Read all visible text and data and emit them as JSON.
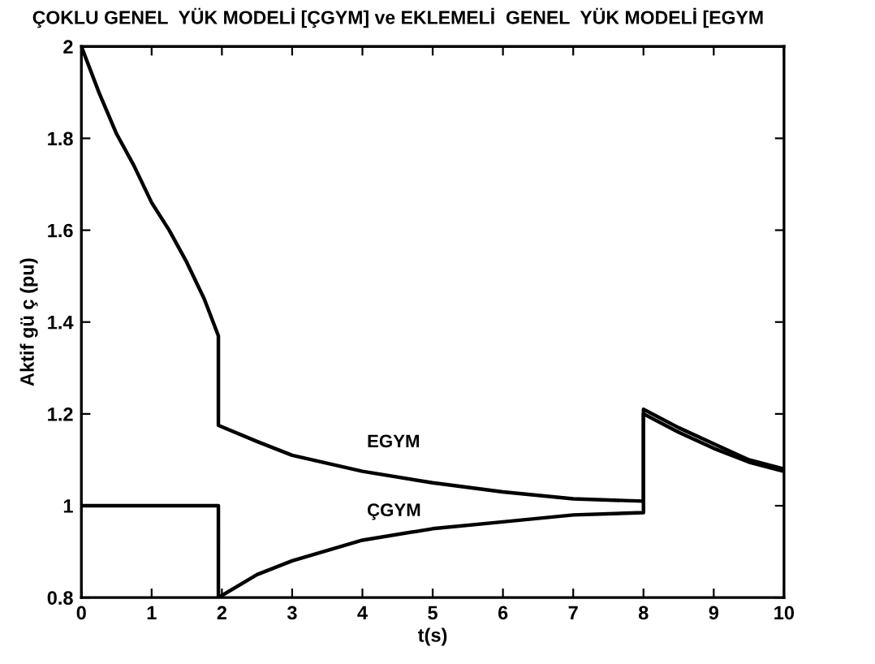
{
  "chart_data": {
    "type": "line",
    "title": "ÇOKLU GENEL  YÜK MODELİ [ÇGYM] ve EKLEMELİ  GENEL  YÜK MODELİ [EGYM",
    "xlabel": "t(s)",
    "ylabel": "Aktif gü ç (pu)",
    "xlim": [
      0,
      10
    ],
    "ylim": [
      0.8,
      2
    ],
    "xticks": [
      0,
      1,
      2,
      3,
      4,
      5,
      6,
      7,
      8,
      9,
      10
    ],
    "yticks": [
      0.8,
      1,
      1.2,
      1.4,
      1.6,
      1.8,
      2
    ],
    "grid": false,
    "legend": false,
    "marker": "none",
    "line_style": "solid",
    "series": [
      {
        "name": "EGYM",
        "color": "#000000",
        "x": [
          0,
          0.25,
          0.5,
          0.75,
          1,
          1.25,
          1.5,
          1.75,
          1.95,
          1.95,
          2.5,
          3,
          4,
          5,
          6,
          7,
          8,
          8,
          8.5,
          9,
          9.5,
          10
        ],
        "values": [
          2,
          1.9,
          1.81,
          1.74,
          1.66,
          1.6,
          1.53,
          1.45,
          1.37,
          1.175,
          1.14,
          1.11,
          1.075,
          1.05,
          1.03,
          1.015,
          1.01,
          1.21,
          1.17,
          1.135,
          1.1,
          1.08
        ]
      },
      {
        "name": "ÇGYM",
        "color": "#000000",
        "x": [
          0,
          1.95,
          1.95,
          2.5,
          3,
          4,
          5,
          6,
          7,
          8,
          8,
          8.5,
          9,
          9.5,
          10
        ],
        "values": [
          1,
          1,
          0.8,
          0.85,
          0.88,
          0.925,
          0.95,
          0.965,
          0.98,
          0.985,
          1.2,
          1.16,
          1.125,
          1.095,
          1.075
        ]
      }
    ]
  }
}
